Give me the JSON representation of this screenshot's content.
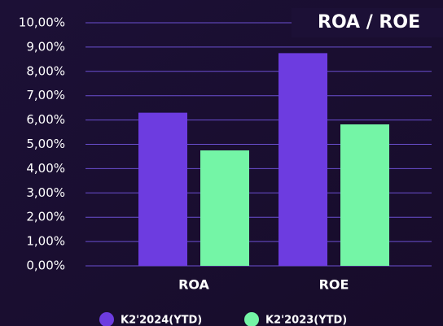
{
  "chart_data": {
    "type": "bar",
    "title": "ROA / ROE",
    "categories": [
      "ROA",
      "ROE"
    ],
    "series": [
      {
        "name": "K2'2024(YTD)",
        "color": "#6d3ce0",
        "values": [
          6.3,
          8.75
        ]
      },
      {
        "name": "K2'2023(YTD)",
        "color": "#74f5a6",
        "values": [
          4.75,
          5.82
        ]
      }
    ],
    "ylim": [
      0,
      10
    ],
    "yticks": [
      {
        "value": 0,
        "label": "0,00%"
      },
      {
        "value": 1,
        "label": "1,00%"
      },
      {
        "value": 2,
        "label": "2,00%"
      },
      {
        "value": 3,
        "label": "3,00%"
      },
      {
        "value": 4,
        "label": "4,00%"
      },
      {
        "value": 5,
        "label": "5,00%"
      },
      {
        "value": 6,
        "label": "6,00%"
      },
      {
        "value": 7,
        "label": "7,00%"
      },
      {
        "value": 8,
        "label": "8,00%"
      },
      {
        "value": 9,
        "label": "9,00%"
      },
      {
        "value": 10,
        "label": "10,00%"
      }
    ],
    "grid": true
  }
}
